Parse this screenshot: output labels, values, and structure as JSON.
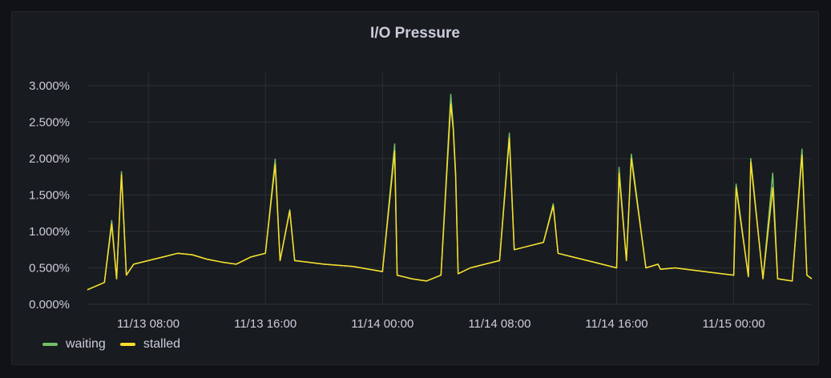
{
  "panel": {
    "title": "I/O Pressure"
  },
  "colors": {
    "waiting": "#73bf69",
    "stalled": "#fade2a",
    "grid": "#2c3036",
    "axis_text": "#ccccdc"
  },
  "chart_data": {
    "type": "line",
    "title": "I/O Pressure",
    "y_unit": "percent",
    "ylim": [
      0,
      3.0
    ],
    "y_ticks": [
      "0.000%",
      "0.500%",
      "1.000%",
      "1.500%",
      "2.000%",
      "2.500%",
      "3.000%"
    ],
    "x_ticks": [
      "11/13 08:00",
      "11/13 16:00",
      "11/14 00:00",
      "11/14 08:00",
      "11/14 16:00",
      "11/15 00:00"
    ],
    "x_range": [
      "11/13 03:50",
      "11/15 05:20"
    ],
    "grid": true,
    "legend_position": "bottom-left",
    "series": [
      {
        "name": "waiting",
        "color": "#73bf69",
        "x": [
          "11/13 03:50",
          "11/13 05:00",
          "11/13 05:30",
          "11/13 05:50",
          "11/13 06:10",
          "11/13 06:30",
          "11/13 07:00",
          "11/13 08:00",
          "11/13 09:00",
          "11/13 10:00",
          "11/13 11:00",
          "11/13 12:00",
          "11/13 13:00",
          "11/13 14:00",
          "11/13 15:00",
          "11/13 16:00",
          "11/13 16:40",
          "11/13 17:00",
          "11/13 17:40",
          "11/13 18:00",
          "11/13 20:00",
          "11/13 22:00",
          "11/14 00:00",
          "11/14 00:50",
          "11/14 01:00",
          "11/14 02:00",
          "11/14 03:00",
          "11/14 04:00",
          "11/14 04:40",
          "11/14 04:50",
          "11/14 05:00",
          "11/14 05:10",
          "11/14 06:00",
          "11/14 07:00",
          "11/14 08:00",
          "11/14 08:40",
          "11/14 09:00",
          "11/14 10:00",
          "11/14 11:00",
          "11/14 11:40",
          "11/14 12:00",
          "11/14 13:00",
          "11/14 14:00",
          "11/14 15:00",
          "11/14 16:00",
          "11/14 16:10",
          "11/14 16:40",
          "11/14 17:00",
          "11/14 18:00",
          "11/14 18:50",
          "11/14 19:00",
          "11/14 20:00",
          "11/14 22:00",
          "11/15 00:00",
          "11/15 00:10",
          "11/15 01:00",
          "11/15 01:10",
          "11/15 02:00",
          "11/15 02:40",
          "11/15 03:00",
          "11/15 04:00",
          "11/15 04:40",
          "11/15 05:00",
          "11/15 05:20"
        ],
        "values": [
          0.2,
          0.3,
          1.15,
          0.35,
          1.82,
          0.4,
          0.55,
          0.6,
          0.65,
          0.7,
          0.68,
          0.62,
          0.58,
          0.55,
          0.65,
          0.7,
          1.99,
          0.6,
          1.3,
          0.6,
          0.55,
          0.52,
          0.45,
          2.2,
          0.4,
          0.35,
          0.32,
          0.4,
          2.88,
          2.45,
          1.8,
          0.42,
          0.5,
          0.55,
          0.6,
          2.35,
          0.75,
          0.8,
          0.85,
          1.38,
          0.7,
          0.65,
          0.6,
          0.55,
          0.5,
          1.88,
          0.6,
          2.06,
          0.5,
          0.55,
          0.48,
          0.5,
          0.45,
          0.4,
          1.65,
          0.38,
          2.0,
          0.35,
          1.8,
          0.35,
          0.32,
          2.13,
          0.4,
          0.35
        ]
      },
      {
        "name": "stalled",
        "color": "#fade2a",
        "x": [
          "11/13 03:50",
          "11/13 05:00",
          "11/13 05:30",
          "11/13 05:50",
          "11/13 06:10",
          "11/13 06:30",
          "11/13 07:00",
          "11/13 08:00",
          "11/13 09:00",
          "11/13 10:00",
          "11/13 11:00",
          "11/13 12:00",
          "11/13 13:00",
          "11/13 14:00",
          "11/13 15:00",
          "11/13 16:00",
          "11/13 16:40",
          "11/13 17:00",
          "11/13 17:40",
          "11/13 18:00",
          "11/13 20:00",
          "11/13 22:00",
          "11/14 00:00",
          "11/14 00:50",
          "11/14 01:00",
          "11/14 02:00",
          "11/14 03:00",
          "11/14 04:00",
          "11/14 04:40",
          "11/14 04:50",
          "11/14 05:00",
          "11/14 05:10",
          "11/14 06:00",
          "11/14 07:00",
          "11/14 08:00",
          "11/14 08:40",
          "11/14 09:00",
          "11/14 10:00",
          "11/14 11:00",
          "11/14 11:40",
          "11/14 12:00",
          "11/14 13:00",
          "11/14 14:00",
          "11/14 15:00",
          "11/14 16:00",
          "11/14 16:10",
          "11/14 16:40",
          "11/14 17:00",
          "11/14 18:00",
          "11/14 18:50",
          "11/14 19:00",
          "11/14 20:00",
          "11/14 22:00",
          "11/15 00:00",
          "11/15 00:10",
          "11/15 01:00",
          "11/15 01:10",
          "11/15 02:00",
          "11/15 02:40",
          "11/15 03:00",
          "11/15 04:00",
          "11/15 04:40",
          "11/15 05:00",
          "11/15 05:20"
        ],
        "values": [
          0.2,
          0.3,
          1.1,
          0.35,
          1.78,
          0.4,
          0.55,
          0.6,
          0.65,
          0.7,
          0.68,
          0.62,
          0.58,
          0.55,
          0.65,
          0.7,
          1.92,
          0.6,
          1.28,
          0.6,
          0.55,
          0.52,
          0.45,
          2.1,
          0.4,
          0.35,
          0.32,
          0.4,
          2.75,
          2.4,
          1.75,
          0.42,
          0.5,
          0.55,
          0.6,
          2.28,
          0.75,
          0.8,
          0.85,
          1.35,
          0.7,
          0.65,
          0.6,
          0.55,
          0.5,
          1.8,
          0.6,
          2.0,
          0.5,
          0.55,
          0.48,
          0.5,
          0.45,
          0.4,
          1.6,
          0.38,
          1.95,
          0.35,
          1.6,
          0.35,
          0.32,
          2.05,
          0.4,
          0.35
        ]
      }
    ]
  }
}
